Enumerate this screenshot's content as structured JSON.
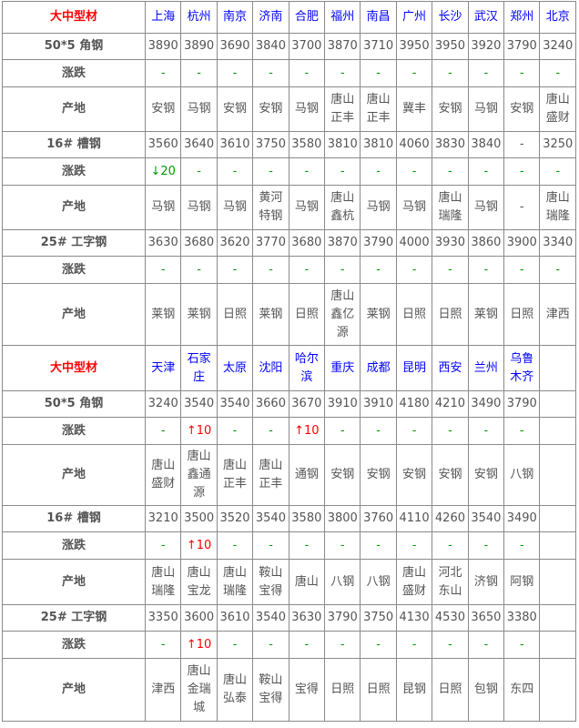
{
  "sections": [
    {
      "title": "大中型材",
      "cities": [
        "上海",
        "杭州",
        "南京",
        "济南",
        "合肥",
        "福州",
        "南昌",
        "广州",
        "长沙",
        "武汉",
        "郑州",
        "北京"
      ],
      "products": [
        {
          "name": "50*5 角钢",
          "prices": [
            "3890",
            "3890",
            "3690",
            "3840",
            "3700",
            "3870",
            "3710",
            "3950",
            "3950",
            "3920",
            "3790",
            "3240"
          ],
          "change_label": "涨跌",
          "changes": [
            "-",
            "-",
            "-",
            "-",
            "-",
            "-",
            "-",
            "-",
            "-",
            "-",
            "-",
            "-"
          ],
          "origin_label": "产地",
          "origins": [
            "安钢",
            "马钢",
            "安钢",
            "安钢",
            "马钢",
            "唐山正丰",
            "唐山正丰",
            "冀丰",
            "安钢",
            "马钢",
            "安钢",
            "唐山盛财"
          ]
        },
        {
          "name": "16# 槽钢",
          "prices": [
            "3560",
            "3640",
            "3610",
            "3750",
            "3580",
            "3810",
            "3810",
            "4060",
            "3830",
            "3840",
            "-",
            "3250"
          ],
          "change_label": "涨跌",
          "changes": [
            "↓20",
            "-",
            "-",
            "-",
            "-",
            "-",
            "-",
            "-",
            "-",
            "-",
            "-",
            "-"
          ],
          "origin_label": "产地",
          "origins": [
            "马钢",
            "马钢",
            "马钢",
            "黄河特钢",
            "马钢",
            "唐山鑫杭",
            "马钢",
            "马钢",
            "唐山瑞隆",
            "马钢",
            "-",
            "唐山瑞隆"
          ]
        },
        {
          "name": "25# 工字钢",
          "prices": [
            "3630",
            "3680",
            "3620",
            "3770",
            "3680",
            "3870",
            "3790",
            "4000",
            "3930",
            "3860",
            "3900",
            "3340"
          ],
          "change_label": "涨跌",
          "changes": [
            "-",
            "-",
            "-",
            "-",
            "-",
            "-",
            "-",
            "-",
            "-",
            "-",
            "-",
            "-"
          ],
          "origin_label": "产地",
          "origins": [
            "莱钢",
            "莱钢",
            "日照",
            "莱钢",
            "日照",
            "唐山鑫亿源",
            "莱钢",
            "日照",
            "日照",
            "莱钢",
            "日照",
            "津西"
          ]
        }
      ]
    },
    {
      "title": "大中型材",
      "cities": [
        "天津",
        "石家庄",
        "太原",
        "沈阳",
        "哈尔滨",
        "重庆",
        "成都",
        "昆明",
        "西安",
        "兰州",
        "乌鲁木齐",
        ""
      ],
      "products": [
        {
          "name": "50*5 角钢",
          "prices": [
            "3240",
            "3540",
            "3540",
            "3660",
            "3670",
            "3910",
            "3910",
            "4180",
            "4210",
            "3490",
            "3790",
            ""
          ],
          "change_label": "涨跌",
          "changes": [
            "-",
            "↑10",
            "-",
            "-",
            "↑10",
            "-",
            "-",
            "-",
            "-",
            "-",
            "-",
            ""
          ],
          "origin_label": "产地",
          "origins": [
            "唐山盛财",
            "唐山鑫通源",
            "唐山正丰",
            "唐山正丰",
            "通钢",
            "安钢",
            "安钢",
            "安钢",
            "安钢",
            "安钢",
            "八钢",
            ""
          ]
        },
        {
          "name": "16# 槽钢",
          "prices": [
            "3210",
            "3500",
            "3520",
            "3540",
            "3580",
            "3800",
            "3760",
            "4110",
            "4260",
            "3540",
            "3490",
            ""
          ],
          "change_label": "涨跌",
          "changes": [
            "-",
            "↑10",
            "-",
            "-",
            "-",
            "-",
            "-",
            "-",
            "-",
            "-",
            "-",
            ""
          ],
          "origin_label": "产地",
          "origins": [
            "唐山瑞隆",
            "唐山宝龙",
            "唐山瑞隆",
            "鞍山宝得",
            "唐山",
            "八钢",
            "八钢",
            "唐山盛财",
            "河北东山",
            "济钢",
            "阿钢",
            ""
          ]
        },
        {
          "name": "25# 工字钢",
          "prices": [
            "3350",
            "3600",
            "3610",
            "3540",
            "3630",
            "3790",
            "3750",
            "4130",
            "4530",
            "3650",
            "3380",
            ""
          ],
          "change_label": "涨跌",
          "changes": [
            "-",
            "↑10",
            "-",
            "-",
            "-",
            "-",
            "-",
            "-",
            "-",
            "-",
            "-",
            ""
          ],
          "origin_label": "产地",
          "origins": [
            "津西",
            "唐山金瑞城",
            "唐山弘泰",
            "鞍山宝得",
            "宝得",
            "日照",
            "日照",
            "昆钢",
            "日照",
            "包钢",
            "东四",
            ""
          ]
        }
      ]
    }
  ],
  "colors": {
    "title": "#ff0000",
    "city": "#0000ff",
    "up": "#ff0000",
    "down": "#009900",
    "text": "#555555"
  }
}
